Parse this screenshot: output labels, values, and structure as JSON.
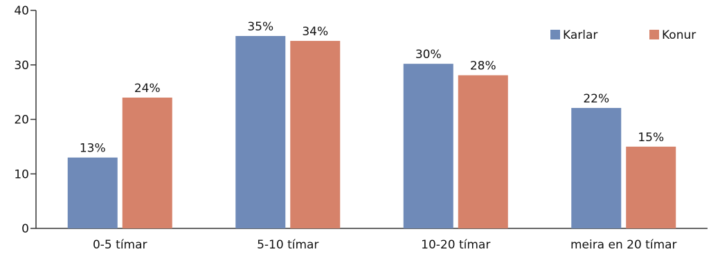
{
  "chart_data": {
    "type": "bar",
    "categories": [
      "0-5 tímar",
      "5-10 tímar",
      "10-20 tímar",
      "meira en 20 tímar"
    ],
    "series": [
      {
        "name": "Karlar",
        "values": [
          13,
          35.3,
          30.2,
          22.1
        ],
        "labels": [
          "13%",
          "35%",
          "30%",
          "22%"
        ]
      },
      {
        "name": "Konur",
        "values": [
          24,
          34.4,
          28.1,
          15
        ],
        "labels": [
          "24%",
          "34%",
          "28%",
          "15%"
        ]
      }
    ],
    "yticks": [
      "0",
      "10",
      "20",
      "30",
      "40"
    ],
    "ylim": [
      0,
      40
    ],
    "grid": false,
    "legend": "top-right",
    "colors": {
      "Karlar": "#6f8ab8",
      "Konur": "#d6826a"
    }
  }
}
